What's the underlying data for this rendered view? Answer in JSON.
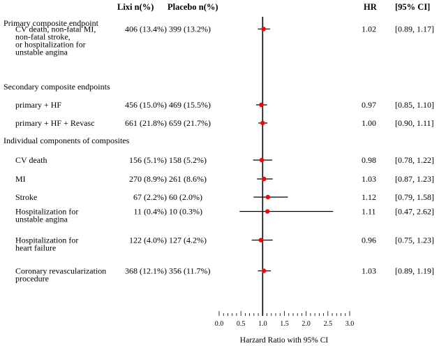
{
  "chart_data": {
    "type": "forest",
    "headers": {
      "lixi": "Lixi n(%)",
      "placebo": "Placebo n(%)",
      "hr": "HR",
      "ci": "[95% CI]"
    },
    "xlabel": "Harzard Ratio with 95% CI",
    "xlim": [
      0.0,
      3.0
    ],
    "xticks": [
      "0.0",
      "0.5",
      "1.0",
      "1.5",
      "2.0",
      "2.5",
      "3.0"
    ],
    "reference_line": 1.0,
    "marker_color": "#ff0000",
    "sections": [
      {
        "title": "Primary composite endpoint",
        "rows": [
          {
            "label": [
              "CV death, non-fatal MI,",
              "non-fatal stroke,",
              "or hospitalization for",
              "unstable angina"
            ],
            "lixi": "406 (13.4%)",
            "placebo": "399 (13.2%)",
            "hr": 1.02,
            "lo": 0.89,
            "hi": 1.17,
            "hr_text": "1.02",
            "ci_text": "[0.89, 1.17]"
          }
        ]
      },
      {
        "title": "Secondary composite endpoints",
        "rows": [
          {
            "label": [
              "primary + HF"
            ],
            "lixi": "456 (15.0%)",
            "placebo": "469 (15.5%)",
            "hr": 0.97,
            "lo": 0.85,
            "hi": 1.1,
            "hr_text": "0.97",
            "ci_text": "[0.85, 1.10]"
          },
          {
            "label": [
              "primary + HF + Revasc"
            ],
            "lixi": "661 (21.8%)",
            "placebo": "659 (21.7%)",
            "hr": 1.0,
            "lo": 0.9,
            "hi": 1.11,
            "hr_text": "1.00",
            "ci_text": "[0.90, 1.11]"
          }
        ]
      },
      {
        "title": "Individual components of composites",
        "rows": [
          {
            "label": [
              "CV death"
            ],
            "lixi": "156 (5.1%)",
            "placebo": "158 (5.2%)",
            "hr": 0.98,
            "lo": 0.78,
            "hi": 1.22,
            "hr_text": "0.98",
            "ci_text": "[0.78, 1.22]"
          },
          {
            "label": [
              "MI"
            ],
            "lixi": "270 (8.9%)",
            "placebo": "261 (8.6%)",
            "hr": 1.03,
            "lo": 0.87,
            "hi": 1.23,
            "hr_text": "1.03",
            "ci_text": "[0.87, 1.23]"
          },
          {
            "label": [
              "Stroke"
            ],
            "lixi": "67 (2.2%)",
            "placebo": "60 (2.0%)",
            "hr": 1.12,
            "lo": 0.79,
            "hi": 1.58,
            "hr_text": "1.12",
            "ci_text": "[0.79, 1.58]"
          },
          {
            "label": [
              "Hospitalization for",
              "unstable angina"
            ],
            "lixi": "11 (0.4%)",
            "placebo": "10 (0.3%)",
            "hr": 1.11,
            "lo": 0.47,
            "hi": 2.62,
            "hr_text": "1.11",
            "ci_text": "[0.47, 2.62]"
          },
          {
            "label": [
              "Hospitalization for",
              "heart failure"
            ],
            "lixi": "122 (4.0%)",
            "placebo": "127 (4.2%)",
            "hr": 0.96,
            "lo": 0.75,
            "hi": 1.23,
            "hr_text": "0.96",
            "ci_text": "[0.75, 1.23]"
          },
          {
            "label": [
              "Coronary revascularization",
              "procedure"
            ],
            "lixi": "368 (12.1%)",
            "placebo": "356 (11.7%)",
            "hr": 1.03,
            "lo": 0.89,
            "hi": 1.19,
            "hr_text": "1.03",
            "ci_text": "[0.89, 1.19]"
          }
        ]
      }
    ]
  }
}
